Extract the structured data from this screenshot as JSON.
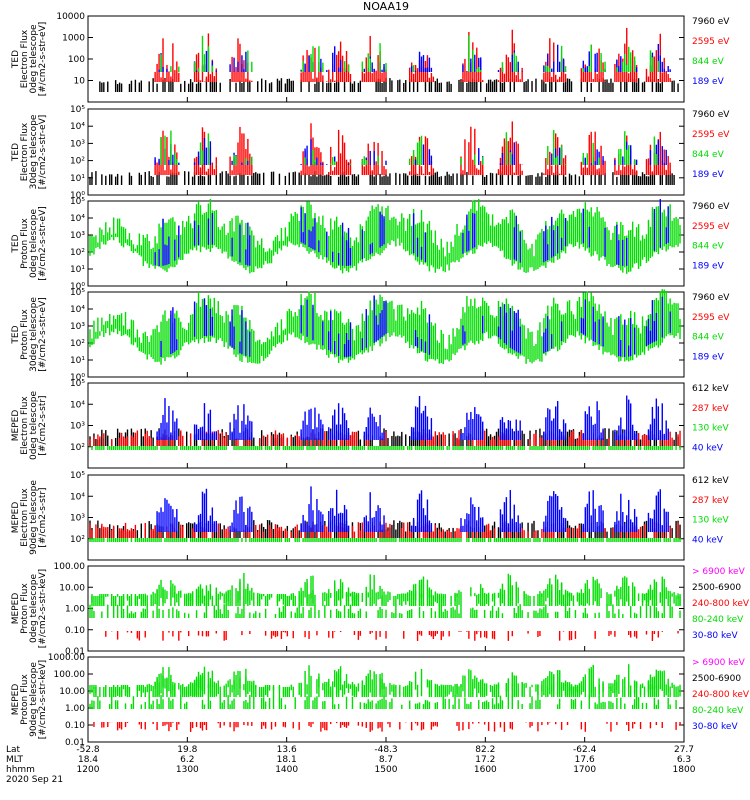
{
  "title": "NOAA19",
  "chart_data": {
    "type": "line",
    "title": "NOAA19",
    "x_ticks": [
      "1200",
      "1300",
      "1400",
      "1500",
      "1600",
      "1700",
      "1800"
    ],
    "footer": {
      "row_labels": [
        "Lat",
        "MLT",
        "hhmm"
      ],
      "lat": [
        "-52.8",
        "19.8",
        "13.6",
        "-48.3",
        "82.2",
        "-62.4",
        "27.7"
      ],
      "mlt": [
        "18.4",
        "6.2",
        "18.1",
        "8.7",
        "17.2",
        "17.6",
        "6.3"
      ],
      "date": "2020 Sep 21"
    },
    "panels": [
      {
        "ylabel": [
          "TED",
          "Electron Flux",
          "0deg telescope",
          "[#/cm2-s-str-eV]"
        ],
        "yscale": "log",
        "ylim": [
          1,
          10000
        ],
        "yticks": [
          "10000",
          "1000",
          "100",
          "10"
        ],
        "legend": [
          "7960 eV",
          "2595 eV",
          "844 eV",
          "189 eV"
        ],
        "legend_colors": [
          "#000000",
          "#ff0000",
          "#00dd00",
          "#0000ff"
        ]
      },
      {
        "ylabel": [
          "TED",
          "Electron Flux",
          "30deg telescope",
          "[#/cm2-s-str-eV]"
        ],
        "yscale": "log",
        "ylim": [
          1,
          100000
        ],
        "yticks": [
          "10⁵",
          "10⁴",
          "10³",
          "10²",
          "10¹",
          "10⁰"
        ],
        "legend": [
          "7960 eV",
          "2595 eV",
          "844 eV",
          "189 eV"
        ],
        "legend_colors": [
          "#000000",
          "#ff0000",
          "#00dd00",
          "#0000ff"
        ]
      },
      {
        "ylabel": [
          "TED",
          "Proton Flux",
          "0deg telescope",
          "[#/cm2-s-str-eV]"
        ],
        "yscale": "log",
        "ylim": [
          1,
          100000
        ],
        "yticks": [
          "10⁵",
          "10⁴",
          "10³",
          "10²",
          "10¹",
          "10⁰"
        ],
        "legend": [
          "7960 eV",
          "2595 eV",
          "844 eV",
          "189 eV"
        ],
        "legend_colors": [
          "#000000",
          "#ff0000",
          "#00dd00",
          "#0000ff"
        ]
      },
      {
        "ylabel": [
          "TED",
          "Proton Flux",
          "30deg telescope",
          "[#/cm2-s-str-eV]"
        ],
        "yscale": "log",
        "ylim": [
          1,
          100000
        ],
        "yticks": [
          "10⁵",
          "10⁴",
          "10³",
          "10²",
          "10¹",
          "10⁰"
        ],
        "legend": [
          "7960 eV",
          "2595 eV",
          "844 eV",
          "189 eV"
        ],
        "legend_colors": [
          "#000000",
          "#ff0000",
          "#00dd00",
          "#0000ff"
        ]
      },
      {
        "ylabel": [
          "MEPED",
          "Electron Flux",
          "0deg telescope",
          "[#/cm2-s-str]"
        ],
        "yscale": "log",
        "ylim": [
          10,
          100000
        ],
        "yticks": [
          "10⁵",
          "10⁴",
          "10³",
          "10²"
        ],
        "legend": [
          "612 keV",
          "287 keV",
          "130 keV",
          "40 keV"
        ],
        "legend_colors": [
          "#000000",
          "#ff0000",
          "#00dd00",
          "#0000ff"
        ]
      },
      {
        "ylabel": [
          "MEPED",
          "Electron Flux",
          "90deg telescope",
          "[#/cm2-s-str]"
        ],
        "yscale": "log",
        "ylim": [
          10,
          100000
        ],
        "yticks": [
          "10⁵",
          "10⁴",
          "10³",
          "10²"
        ],
        "legend": [
          "612 keV",
          "287 keV",
          "130 keV",
          "40 keV"
        ],
        "legend_colors": [
          "#000000",
          "#ff0000",
          "#00dd00",
          "#0000ff"
        ]
      },
      {
        "ylabel": [
          "MEPED",
          "Proton Flux",
          "0deg telescope",
          "[#/cm2-s-str-keV]"
        ],
        "yscale": "log",
        "ylim": [
          0.01,
          100
        ],
        "yticks": [
          "100.00",
          "10.00",
          "1.00",
          "0.10",
          "0.01"
        ],
        "legend": [
          "> 6900 keV",
          "2500-6900",
          "240-800 keV",
          "80-240 keV",
          "30-80 keV"
        ],
        "legend_colors": [
          "#ff00ff",
          "#000000",
          "#ff0000",
          "#00dd00",
          "#0000ff"
        ]
      },
      {
        "ylabel": [
          "MEPED",
          "Proton Flux",
          "90deg telescope",
          "[#/cm2-s-str-keV]"
        ],
        "yscale": "log",
        "ylim": [
          0.01,
          1000
        ],
        "yticks": [
          "1000.00",
          "100.00",
          "10.00",
          "1.00",
          "0.10",
          "0.01"
        ],
        "legend": [
          "> 6900 keV",
          "2500-6900",
          "240-800 keV",
          "80-240 keV",
          "30-80 keV"
        ],
        "legend_colors": [
          "#ff00ff",
          "#000000",
          "#ff0000",
          "#00dd00",
          "#0000ff"
        ]
      }
    ]
  }
}
